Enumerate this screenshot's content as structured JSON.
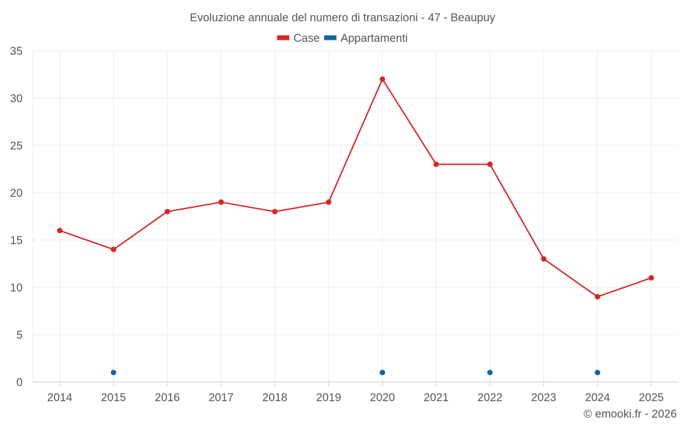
{
  "chart_data": {
    "type": "line",
    "title": "Evoluzione annuale del numero di transazioni - 47 - Beaupuy",
    "categories": [
      "2014",
      "2015",
      "2016",
      "2017",
      "2018",
      "2019",
      "2020",
      "2021",
      "2022",
      "2023",
      "2024",
      "2025"
    ],
    "series": [
      {
        "name": "Case",
        "color": "#d62728",
        "style": "line-with-markers",
        "values": [
          16,
          14,
          18,
          19,
          18,
          19,
          32,
          23,
          23,
          13,
          9,
          11
        ]
      },
      {
        "name": "Appartamenti",
        "color": "#1565a0",
        "style": "markers-only",
        "values": [
          null,
          1,
          null,
          null,
          null,
          null,
          1,
          null,
          1,
          null,
          1,
          null
        ]
      }
    ],
    "y_ticks": [
      "0",
      "5",
      "10",
      "15",
      "20",
      "25",
      "30",
      "35"
    ],
    "ylim": [
      0,
      35
    ],
    "xlabel": "",
    "ylabel": "",
    "grid": true,
    "legend_position": "top-center"
  },
  "footer": {
    "credit": "© emooki.fr - 2026"
  },
  "colors": {
    "grid": "#ebebeb",
    "axis_text": "#555555",
    "title_text": "#555555",
    "axis_line": "#cccccc"
  }
}
